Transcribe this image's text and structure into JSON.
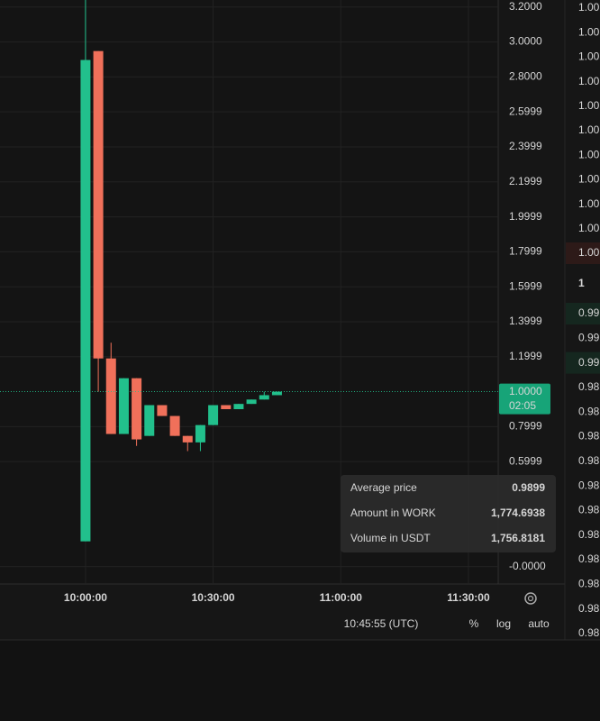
{
  "chart_data": {
    "type": "candlestick",
    "x": [
      600,
      603,
      606,
      609,
      612,
      615,
      618,
      621,
      624,
      627,
      630,
      633,
      636,
      639,
      642,
      645
    ],
    "open": [
      0.144,
      2.948,
      1.19,
      0.758,
      1.077,
      0.747,
      0.923,
      0.861,
      0.747,
      0.71,
      0.809,
      0.923,
      0.9,
      0.93,
      0.955,
      0.98
    ],
    "high": [
      3.24,
      2.948,
      1.28,
      1.077,
      1.077,
      0.923,
      0.923,
      0.861,
      0.747,
      0.809,
      0.923,
      0.923,
      0.93,
      0.955,
      1.0,
      1.0
    ],
    "low": [
      0.144,
      1.0,
      0.758,
      0.758,
      0.69,
      0.747,
      0.861,
      0.747,
      0.66,
      0.66,
      0.809,
      0.9,
      0.9,
      0.93,
      0.955,
      0.98
    ],
    "close": [
      2.897,
      1.19,
      0.758,
      1.077,
      0.727,
      0.923,
      0.861,
      0.747,
      0.71,
      0.809,
      0.923,
      0.9,
      0.93,
      0.955,
      0.98,
      1.0
    ],
    "up_color": "#22c08c",
    "down_color": "#f0705a",
    "xlim": [
      579.9,
      697
    ],
    "ylim": [
      -0.1,
      3.24
    ],
    "xticks": [
      {
        "value": 600,
        "label": "10:00:00"
      },
      {
        "value": 630,
        "label": "10:30:00"
      },
      {
        "value": 660,
        "label": "11:00:00"
      },
      {
        "value": 690,
        "label": "11:30:00"
      }
    ],
    "yticks": [
      {
        "value": 3.2,
        "label": "3.2000"
      },
      {
        "value": 3.0,
        "label": "3.0000"
      },
      {
        "value": 2.8,
        "label": "2.8000"
      },
      {
        "value": 2.5999,
        "label": "2.5999"
      },
      {
        "value": 2.3999,
        "label": "2.3999"
      },
      {
        "value": 2.1999,
        "label": "2.1999"
      },
      {
        "value": 1.9999,
        "label": "1.9999"
      },
      {
        "value": 1.7999,
        "label": "1.7999"
      },
      {
        "value": 1.5999,
        "label": "1.5999"
      },
      {
        "value": 1.3999,
        "label": "1.3999"
      },
      {
        "value": 1.1999,
        "label": "1.1999"
      },
      {
        "value": 0.7999,
        "label": "0.7999"
      },
      {
        "value": 0.5999,
        "label": "0.5999"
      },
      {
        "value": 0,
        "label": "-0.0000"
      }
    ],
    "grid": true,
    "last_price": {
      "value": 1,
      "label": "1.0000"
    },
    "countdown": "02:05"
  },
  "tooltip": [
    {
      "label": "Average price",
      "value": "0.9899"
    },
    {
      "label": "Amount in WORK",
      "value": "1,774.6938"
    },
    {
      "label": "Volume in USDT",
      "value": "1,756.8181"
    }
  ],
  "toolbar": {
    "time": "10:45:55 (UTC)",
    "percent": "%",
    "log": "log",
    "auto": "auto"
  },
  "order_book": {
    "asks": [
      "1.00",
      "1.00",
      "1.00",
      "1.00",
      "1.00",
      "1.00",
      "1.00",
      "1.00",
      "1.00",
      "1.00",
      "1.00"
    ],
    "mid": "1",
    "bids": [
      "0.99",
      "0.99",
      "0.99",
      "0.98",
      "0.98",
      "0.98",
      "0.98",
      "0.98",
      "0.98",
      "0.98",
      "0.98",
      "0.98",
      "0.98",
      "0.98"
    ]
  }
}
